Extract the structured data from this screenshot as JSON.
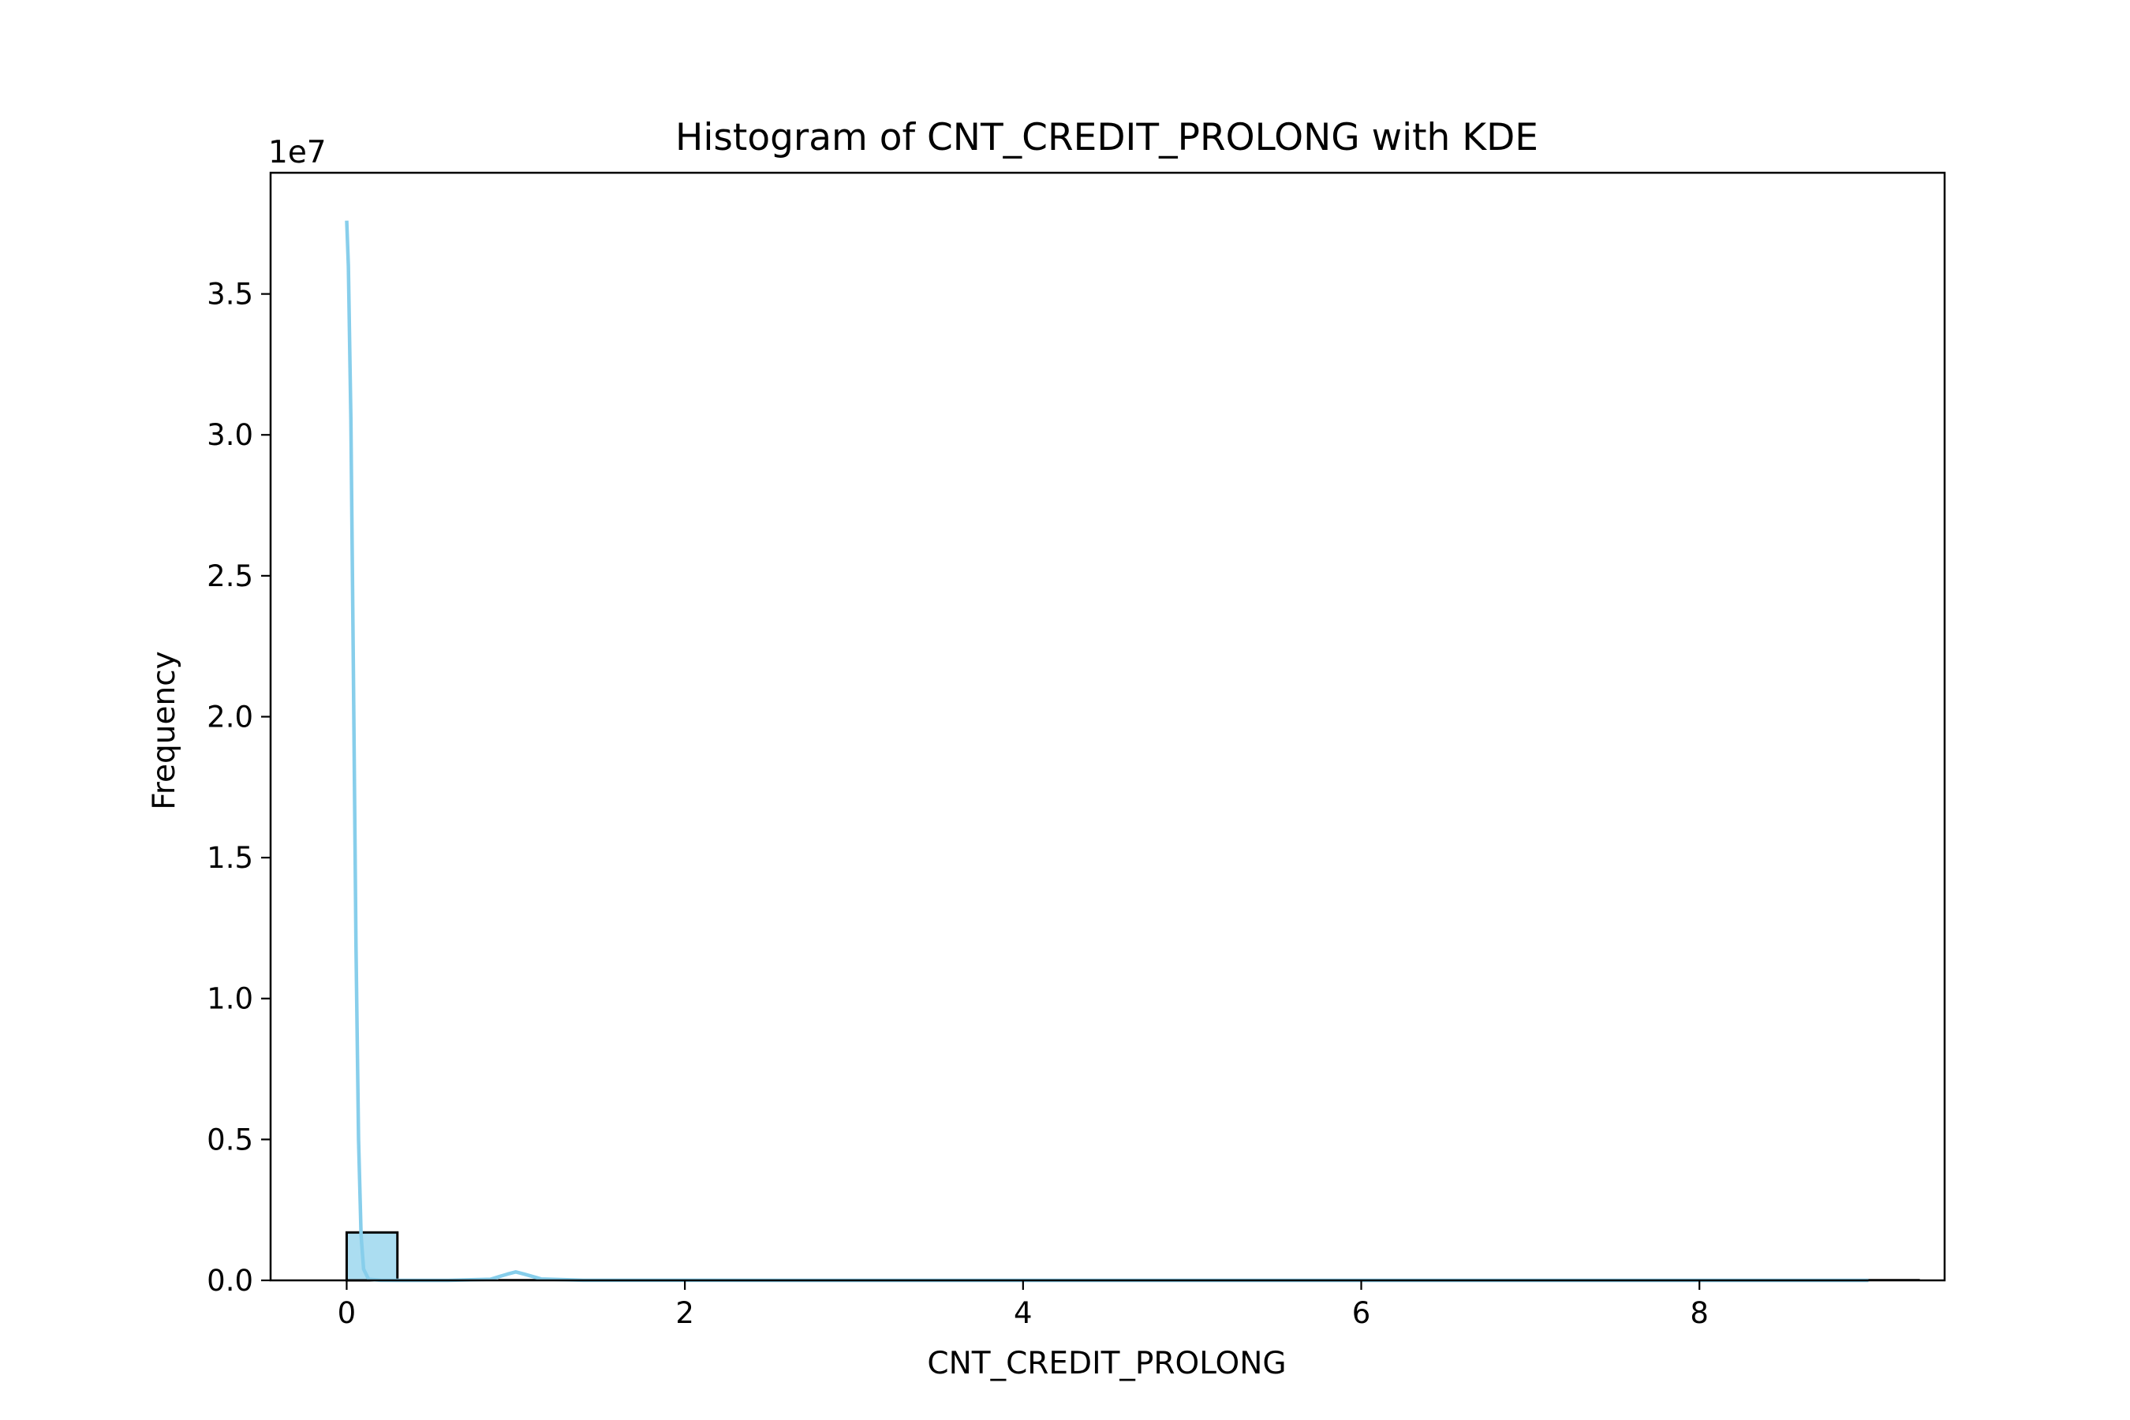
{
  "chart_data": {
    "type": "bar",
    "title": "Histogram of CNT_CREDIT_PROLONG with KDE",
    "xlabel": "CNT_CREDIT_PROLONG",
    "ylabel": "Frequency",
    "y_offset_label": "1e7",
    "xlim": [
      -0.45,
      9.45
    ],
    "ylim": [
      0,
      3.93
    ],
    "x_ticks": [
      0,
      2,
      4,
      6,
      8
    ],
    "x_tick_labels": [
      "0",
      "2",
      "4",
      "6",
      "8"
    ],
    "y_ticks": [
      0.0,
      0.5,
      1.0,
      1.5,
      2.0,
      2.5,
      3.0,
      3.5
    ],
    "y_tick_labels": [
      "0.0",
      "0.5",
      "1.0",
      "1.5",
      "2.0",
      "2.5",
      "3.0",
      "3.5"
    ],
    "grid": false,
    "bin_width": 0.3,
    "bins": [
      {
        "x0": 0.0,
        "x1": 0.3,
        "count": 0.17
      },
      {
        "x0": 0.9,
        "x1": 1.2,
        "count": 0.0012
      },
      {
        "x0": 1.8,
        "x1": 2.1,
        "count": 0.0001
      },
      {
        "x0": 3.0,
        "x1": 3.3,
        "count": 2e-05
      },
      {
        "x0": 3.9,
        "x1": 4.2,
        "count": 1e-05
      },
      {
        "x0": 5.1,
        "x1": 5.4,
        "count": 5e-06
      },
      {
        "x0": 6.0,
        "x1": 6.3,
        "count": 3e-06
      },
      {
        "x0": 6.9,
        "x1": 7.2,
        "count": 2e-06
      },
      {
        "x0": 8.1,
        "x1": 8.4,
        "count": 1e-06
      },
      {
        "x0": 9.0,
        "x1": 9.3,
        "count": 1e-06
      }
    ],
    "kde": {
      "x": [
        0.0,
        0.01,
        0.025,
        0.04,
        0.055,
        0.07,
        0.085,
        0.1,
        0.13,
        0.2,
        0.35,
        0.6,
        0.85,
        0.95,
        1.0,
        1.05,
        1.15,
        1.4,
        2.0,
        3.0,
        4.0,
        5.0,
        6.0,
        7.0,
        8.0,
        9.0
      ],
      "y": [
        3.76,
        3.6,
        3.05,
        2.15,
        1.2,
        0.5,
        0.16,
        0.04,
        0.004,
        0.0004,
        0.0,
        0.0,
        0.004,
        0.022,
        0.03,
        0.022,
        0.005,
        0.0004,
        0.0003,
        0.0001,
        0.0001,
        5e-05,
        3e-05,
        2e-05,
        1e-05,
        1e-05
      ]
    },
    "colors": {
      "bar_fill": "#87ceeb",
      "bar_edge": "#000000",
      "kde_line": "#87ceeb",
      "axes": "#000000"
    }
  }
}
